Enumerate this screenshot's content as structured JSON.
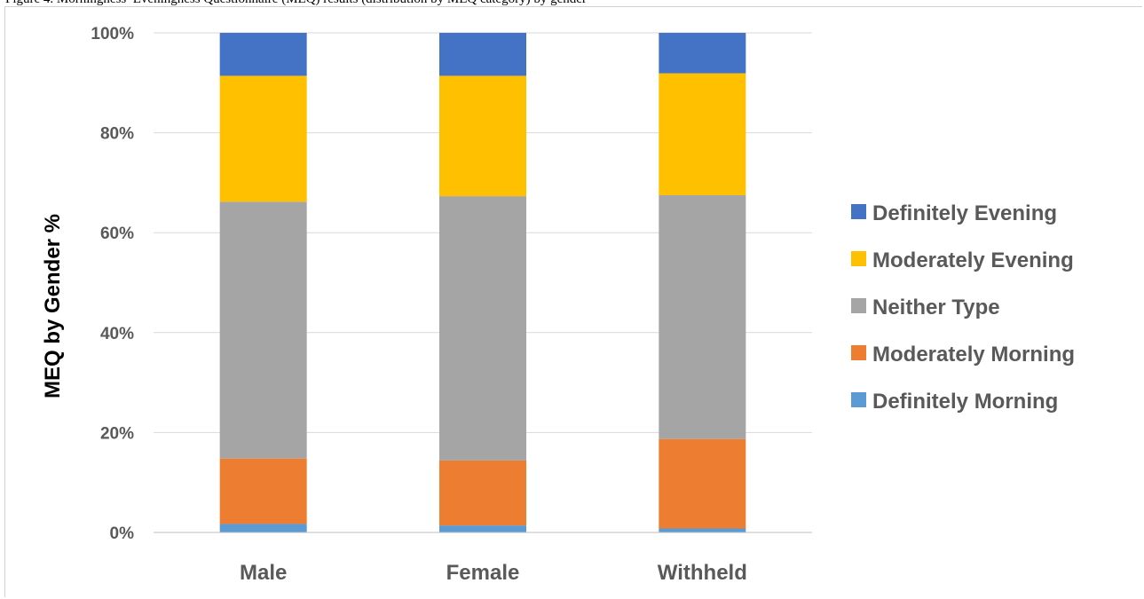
{
  "caption": "Figure 4. Morningness–Eveningness Questionnaire (MEQ) results (distribution by MEQ category) by gender",
  "chart_data": {
    "type": "bar",
    "stacked": true,
    "percent_stacked": true,
    "categories": [
      "Male",
      "Female",
      "Withheld"
    ],
    "series": [
      {
        "name": "Definitely Morning",
        "color": "#5B9BD5",
        "values": [
          1.7,
          1.4,
          0.8
        ]
      },
      {
        "name": "Moderately Morning",
        "color": "#ED7D31",
        "values": [
          13.1,
          13.0,
          17.9
        ]
      },
      {
        "name": "Neither Type",
        "color": "#A5A5A5",
        "values": [
          51.4,
          52.9,
          48.8
        ]
      },
      {
        "name": "Moderately Evening",
        "color": "#FFC000",
        "values": [
          25.2,
          24.1,
          24.4
        ]
      },
      {
        "name": "Definitely Evening",
        "color": "#4472C4",
        "values": [
          8.6,
          8.6,
          8.1
        ]
      }
    ],
    "ylabel": "MEQ by Gender %",
    "xlabel": "",
    "ylim": [
      0,
      100
    ],
    "yticks": [
      "0%",
      "20%",
      "40%",
      "60%",
      "80%",
      "100%"
    ],
    "grid": true,
    "legend_position": "right",
    "legend_order": [
      "Definitely Evening",
      "Moderately Evening",
      "Neither Type",
      "Moderately Morning",
      "Definitely Morning"
    ]
  }
}
